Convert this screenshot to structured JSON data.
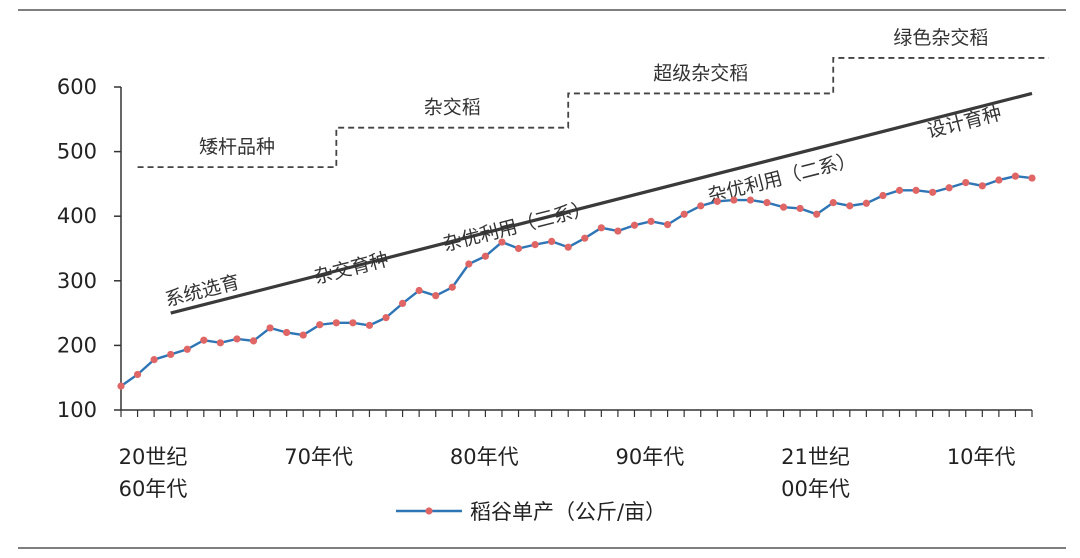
{
  "chart_data": {
    "type": "line",
    "title": "",
    "xlabel": "",
    "ylabel": "",
    "ylim": [
      100,
      600
    ],
    "yticks": [
      100,
      200,
      300,
      400,
      500,
      600
    ],
    "x_ticks": [
      {
        "index": 0,
        "lines": [
          "20世纪",
          "60年代"
        ]
      },
      {
        "index": 10,
        "lines": [
          "70年代",
          ""
        ]
      },
      {
        "index": 20,
        "lines": [
          "80年代",
          ""
        ]
      },
      {
        "index": 30,
        "lines": [
          "90年代",
          ""
        ]
      },
      {
        "index": 40,
        "lines": [
          "21世纪",
          "00年代"
        ]
      },
      {
        "index": 50,
        "lines": [
          "10年代",
          ""
        ]
      }
    ],
    "series": [
      {
        "name": "稻谷单产（公斤/亩）",
        "color": "#2E75B6",
        "marker_color": "#E06666",
        "values": [
          137,
          155,
          178,
          186,
          194,
          208,
          204,
          210,
          207,
          227,
          220,
          216,
          232,
          235,
          235,
          231,
          243,
          265,
          285,
          277,
          290,
          326,
          338,
          360,
          350,
          356,
          361,
          352,
          366,
          382,
          377,
          386,
          392,
          387,
          403,
          416,
          423,
          425,
          425,
          421,
          414,
          412,
          403,
          421,
          416,
          420,
          432,
          440,
          440,
          437,
          444,
          452,
          447,
          456,
          462,
          459
        ]
      }
    ],
    "trend_line": {
      "start": {
        "index": 3,
        "value": 250
      },
      "end": {
        "index": 55,
        "value": 590
      }
    },
    "stage_labels": [
      {
        "text": "系统选育",
        "index": 5,
        "value": 275
      },
      {
        "text": "杂交育种",
        "index": 14,
        "value": 310
      },
      {
        "text": "杂优利用（三系）",
        "index": 24,
        "value": 375
      },
      {
        "text": "杂优利用（二系）",
        "index": 40,
        "value": 450
      },
      {
        "text": "设计育种",
        "index": 51,
        "value": 536
      }
    ],
    "era_steps": [
      {
        "label": "矮杆品种",
        "from": 1,
        "to": 13,
        "value": 476
      },
      {
        "label": "杂交稻",
        "from": 13,
        "to": 27,
        "value": 537
      },
      {
        "label": "超级杂交稻",
        "from": 27,
        "to": 43,
        "value": 590
      },
      {
        "label": "绿色杂交稻",
        "from": 43,
        "to": 56,
        "value": 645
      }
    ],
    "grid": false,
    "legend": "bottom-center"
  }
}
